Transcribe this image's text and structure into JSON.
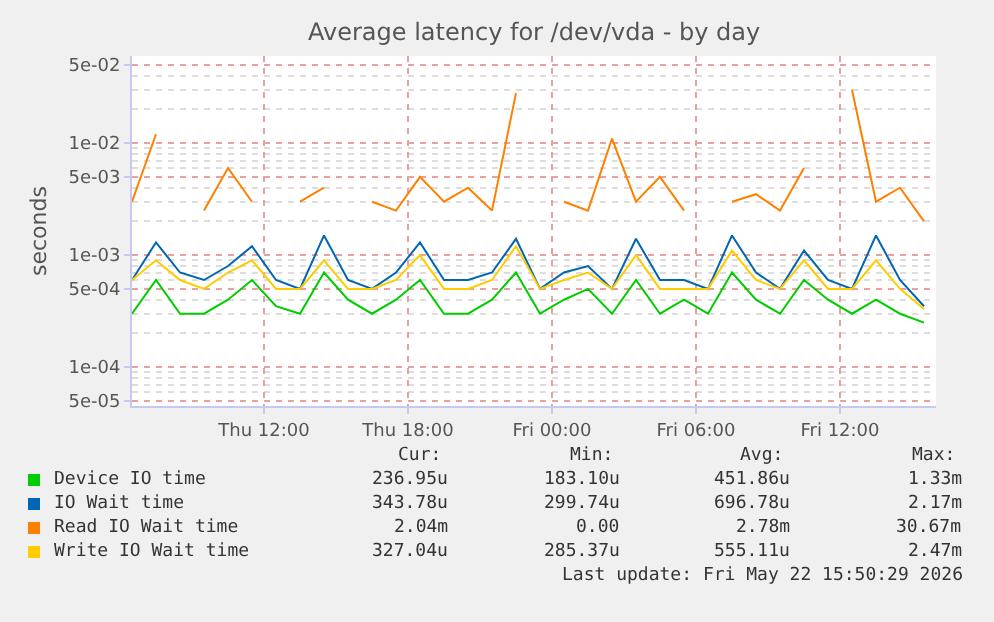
{
  "chart_data": {
    "type": "line",
    "title": "Average latency for /dev/vda - by day",
    "ylabel": "seconds",
    "log": "y",
    "grid": true,
    "legend": "bottom",
    "x": [
      "2026-05-21T06:30",
      "2026-05-21T07:30",
      "2026-05-21T08:30",
      "2026-05-21T09:30",
      "2026-05-21T10:30",
      "2026-05-21T11:30",
      "2026-05-21T12:30",
      "2026-05-21T13:30",
      "2026-05-21T14:30",
      "2026-05-21T15:30",
      "2026-05-21T16:30",
      "2026-05-21T17:30",
      "2026-05-21T18:30",
      "2026-05-21T19:30",
      "2026-05-21T20:30",
      "2026-05-21T21:30",
      "2026-05-21T22:30",
      "2026-05-21T23:30",
      "2026-05-22T00:30",
      "2026-05-22T01:30",
      "2026-05-22T02:30",
      "2026-05-22T03:30",
      "2026-05-22T04:30",
      "2026-05-22T05:30",
      "2026-05-22T06:30",
      "2026-05-22T07:30",
      "2026-05-22T08:30",
      "2026-05-22T09:30",
      "2026-05-22T10:30",
      "2026-05-22T11:30",
      "2026-05-22T12:30",
      "2026-05-22T13:30",
      "2026-05-22T14:30",
      "2026-05-22T15:30"
    ],
    "xlim": [
      "2026-05-21T06:30",
      "2026-05-22T16:00"
    ],
    "xticks": [
      {
        "value": "2026-05-21T12:00",
        "label": "Thu 12:00"
      },
      {
        "value": "2026-05-21T18:00",
        "label": "Thu 18:00"
      },
      {
        "value": "2026-05-22T00:00",
        "label": "Fri 00:00"
      },
      {
        "value": "2026-05-22T06:00",
        "label": "Fri 06:00"
      },
      {
        "value": "2026-05-22T12:00",
        "label": "Fri 12:00"
      }
    ],
    "ylim": [
      4.5e-05,
      0.06
    ],
    "yticks": [
      {
        "value": 5e-05,
        "label": "5e-05"
      },
      {
        "value": 0.0001,
        "label": "1e-04"
      },
      {
        "value": 0.0005,
        "label": "5e-04"
      },
      {
        "value": 0.001,
        "label": "1e-03"
      },
      {
        "value": 0.005,
        "label": "5e-03"
      },
      {
        "value": 0.01,
        "label": "1e-02"
      },
      {
        "value": 0.05,
        "label": "5e-02"
      }
    ],
    "series": [
      {
        "name": "Device IO time",
        "color": "#00cc00",
        "values": [
          0.0003,
          0.0006,
          0.0003,
          0.0003,
          0.0004,
          0.0006,
          0.00035,
          0.0003,
          0.0007,
          0.0004,
          0.0003,
          0.0004,
          0.0006,
          0.0003,
          0.0003,
          0.0004,
          0.0007,
          0.0003,
          0.0004,
          0.0005,
          0.0003,
          0.0006,
          0.0003,
          0.0004,
          0.0003,
          0.0007,
          0.0004,
          0.0003,
          0.0006,
          0.0004,
          0.0003,
          0.0004,
          0.0003,
          0.00025
        ]
      },
      {
        "name": "IO Wait time",
        "color": "#0066b3",
        "values": [
          0.0006,
          0.0013,
          0.0007,
          0.0006,
          0.0008,
          0.0012,
          0.0006,
          0.0005,
          0.0015,
          0.0006,
          0.0005,
          0.0007,
          0.0013,
          0.0006,
          0.0006,
          0.0007,
          0.0014,
          0.0005,
          0.0007,
          0.0008,
          0.0005,
          0.0014,
          0.0006,
          0.0006,
          0.0005,
          0.0015,
          0.0007,
          0.0005,
          0.0011,
          0.0006,
          0.0005,
          0.0015,
          0.0006,
          0.00035
        ]
      },
      {
        "name": "Read IO Wait time",
        "color": "#ff8000",
        "values": [
          0.003,
          0.012,
          null,
          0.0025,
          0.006,
          0.003,
          null,
          0.003,
          0.004,
          null,
          0.003,
          0.0025,
          0.005,
          0.003,
          0.004,
          0.0025,
          0.028,
          null,
          0.003,
          0.0025,
          0.011,
          0.003,
          0.005,
          0.0025,
          null,
          0.003,
          0.0035,
          0.0025,
          0.006,
          null,
          0.03,
          0.003,
          0.004,
          0.002
        ]
      },
      {
        "name": "Write IO Wait time",
        "color": "#ffcc00",
        "values": [
          0.0006,
          0.0009,
          0.0006,
          0.0005,
          0.0007,
          0.0009,
          0.0005,
          0.0005,
          0.0009,
          0.0005,
          0.0005,
          0.0006,
          0.001,
          0.0005,
          0.0005,
          0.0006,
          0.0012,
          0.0005,
          0.0006,
          0.0007,
          0.0005,
          0.001,
          0.0005,
          0.0005,
          0.0005,
          0.0011,
          0.0006,
          0.0005,
          0.0009,
          0.0005,
          0.0005,
          0.0009,
          0.0005,
          0.00033
        ]
      }
    ],
    "annotations": [
      "Cur:",
      "Min:",
      "Avg:",
      "Max:",
      "236.95u",
      "183.10u",
      "451.86u",
      "1.33m",
      "343.78u",
      "299.74u",
      "696.78u",
      "2.17m",
      "2.04m",
      "0.00",
      "2.78m",
      "30.67m",
      "327.04u",
      "285.37u",
      "555.11u",
      "2.47m",
      "Last update: Fri May 22 15:50:29 2026"
    ]
  }
}
